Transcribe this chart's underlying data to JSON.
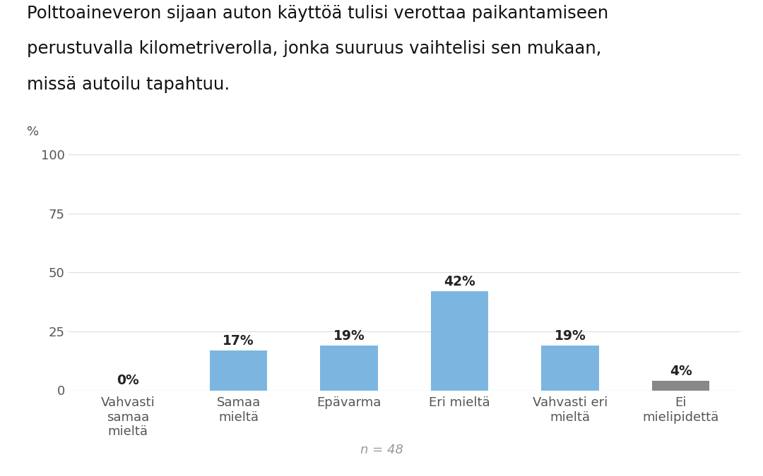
{
  "title_line1": "Polttoaineveron sijaan auton käyttöä tulisi verottaa paikantamiseen",
  "title_line2": "perustuvalla kilometriverolla, jonka suuruus vaihtelisi sen mukaan,",
  "title_line3": "missä autoilu tapahtuu.",
  "categories": [
    "Vahvasti\nsamaa\nmieltä",
    "Samaa\nmieltä",
    "Epävarma",
    "Eri mieltä",
    "Vahvasti eri\nmieltä",
    "Ei\nmielipidettä"
  ],
  "values": [
    0,
    17,
    19,
    42,
    19,
    4
  ],
  "bar_colors": [
    "#7cb6e0",
    "#7cb6e0",
    "#7cb6e0",
    "#7cb6e0",
    "#7cb6e0",
    "#888888"
  ],
  "ylim": [
    0,
    105
  ],
  "yticks": [
    0,
    25,
    50,
    75,
    100
  ],
  "n_label": "n = 48",
  "background_color": "#ffffff",
  "title_fontsize": 17.5,
  "tick_fontsize": 13,
  "label_fontsize": 13.5,
  "n_label_color": "#999999",
  "pct_label_color": "#222222",
  "axis_label_color": "#555555",
  "grid_color": "#dddddd"
}
